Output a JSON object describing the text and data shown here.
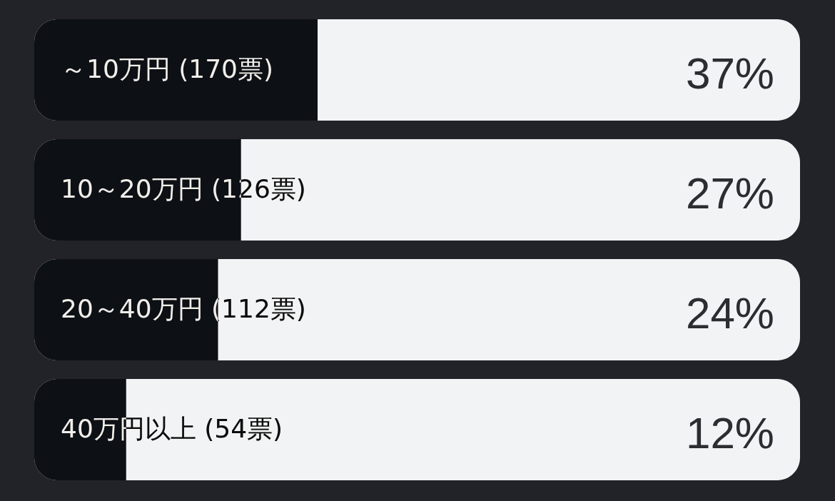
{
  "chart_data": {
    "type": "bar",
    "orientation": "horizontal",
    "tick_labels": "y",
    "xlim": [
      0,
      100
    ],
    "categories": [
      "～10万円 (170票)",
      "10～20万円 (126票)",
      "20～40万円 (112票)",
      "40万円以上 (54票)"
    ],
    "series": [
      {
        "color": "#0d1014",
        "values": [
          37,
          27,
          24,
          12
        ],
        "value_labels": [
          "37%",
          "27%",
          "24%",
          "12%"
        ]
      }
    ]
  }
}
